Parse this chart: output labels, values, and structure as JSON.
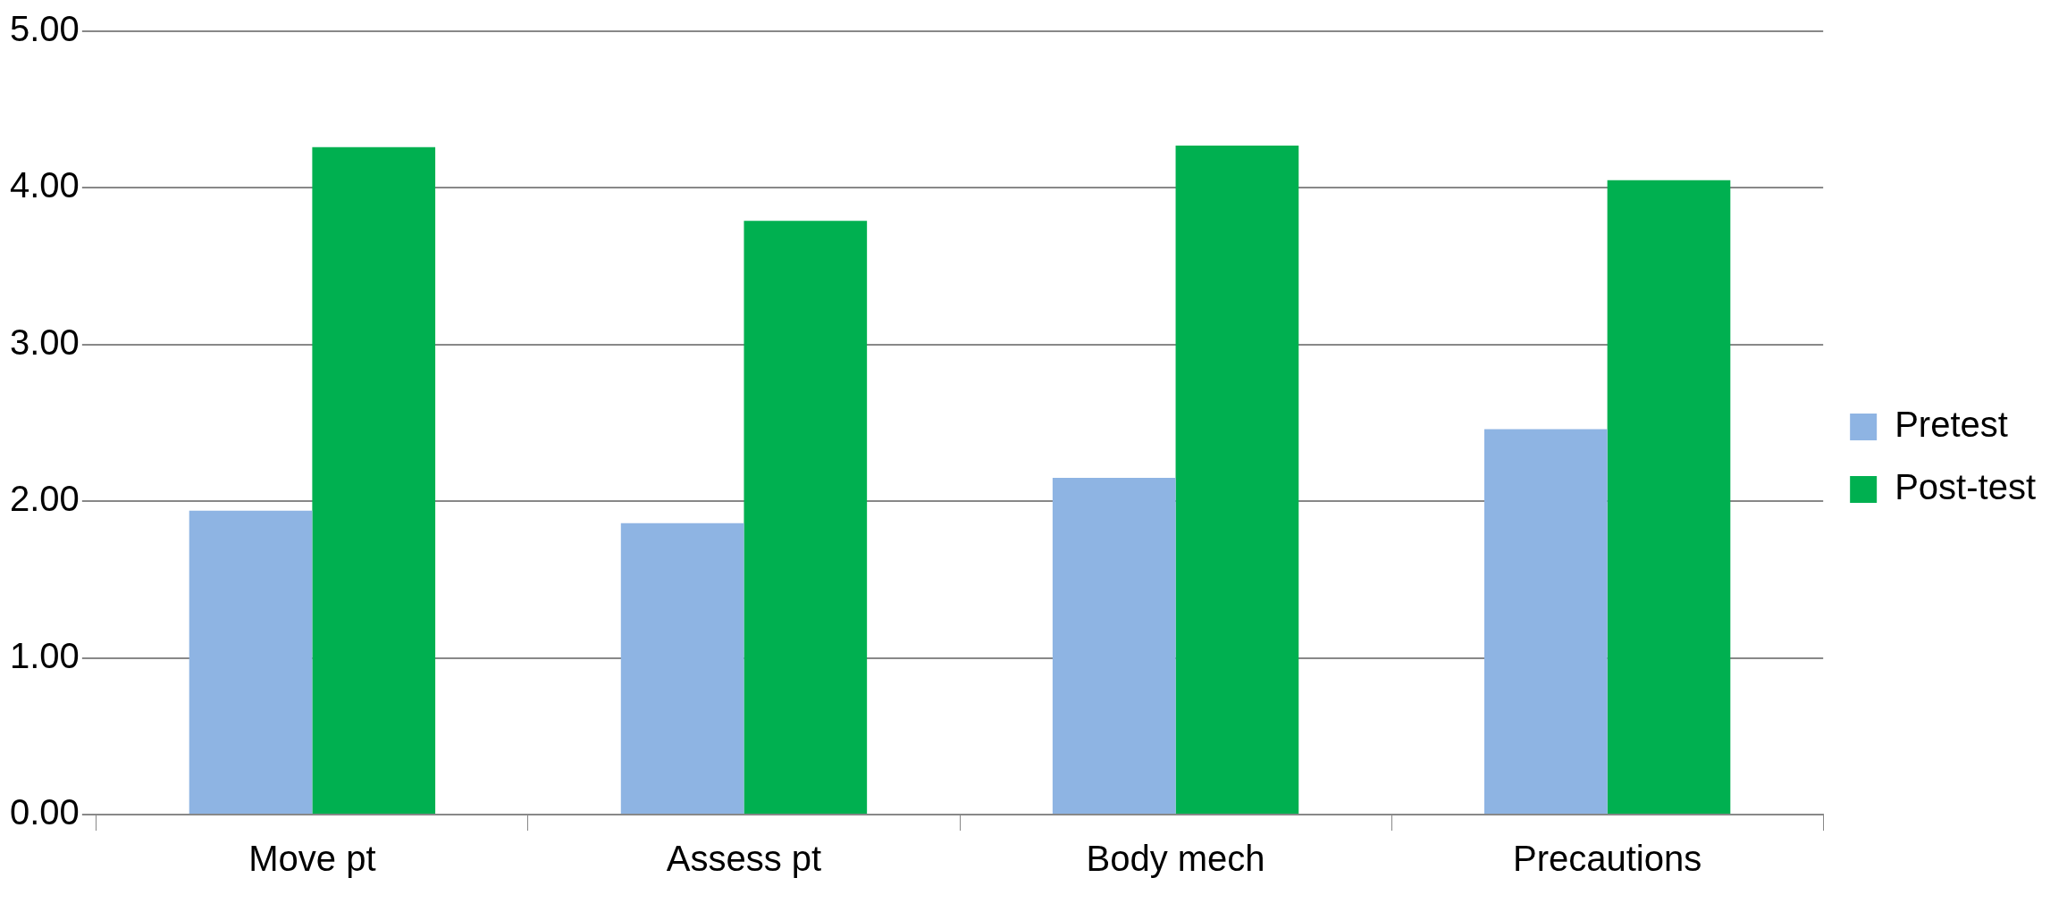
{
  "chart_data": {
    "type": "bar",
    "categories": [
      "Move pt",
      "Assess pt",
      "Body mech",
      "Precautions"
    ],
    "series": [
      {
        "name": "Pretest",
        "color": "#8eb4e3",
        "values": [
          1.94,
          1.86,
          2.15,
          2.46
        ]
      },
      {
        "name": "Post-test",
        "color": "#00b050",
        "values": [
          4.26,
          3.79,
          4.27,
          4.05
        ]
      }
    ],
    "ylim": [
      0,
      5
    ],
    "yticks": [
      {
        "value": 0,
        "label": "0.00"
      },
      {
        "value": 1,
        "label": "1.00"
      },
      {
        "value": 2,
        "label": "2.00"
      },
      {
        "value": 3,
        "label": "3.00"
      },
      {
        "value": 4,
        "label": "4.00"
      },
      {
        "value": 5,
        "label": "5.00"
      }
    ],
    "grid": "y",
    "legend": "right"
  }
}
